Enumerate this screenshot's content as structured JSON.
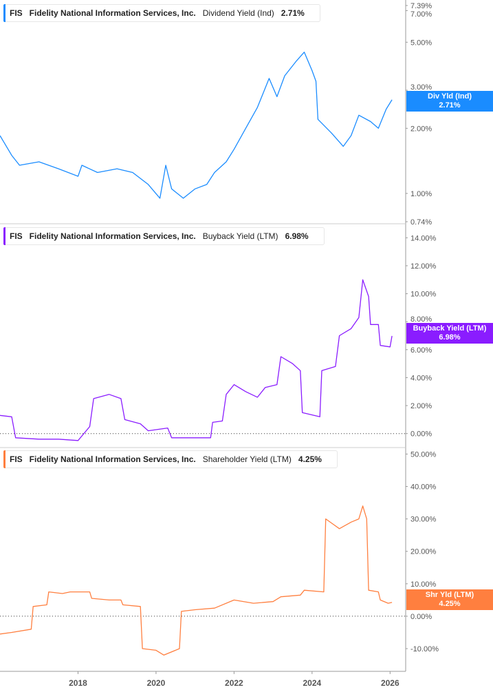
{
  "chart_data": [
    {
      "type": "line",
      "ticker": "FIS",
      "company": "Fidelity National Information Services, Inc.",
      "metric": "Dividend Yield (Ind)",
      "last_value": "2.71%",
      "tag_label": "Div Yld (Ind)",
      "color": "#1a8cff",
      "scale": "log",
      "ylim": [
        0.74,
        7.39
      ],
      "yticks": [
        "7.39%",
        "7.00%",
        "5.00%",
        "3.00%",
        "2.00%",
        "1.00%",
        "0.74%"
      ],
      "ytick_values": [
        7.39,
        7.0,
        5.0,
        3.0,
        2.0,
        1.0,
        0.74
      ],
      "x": [
        2016.0,
        2016.3,
        2016.5,
        2017.0,
        2017.5,
        2018.0,
        2018.1,
        2018.5,
        2019.0,
        2019.4,
        2019.8,
        2020.1,
        2020.25,
        2020.4,
        2020.7,
        2021.0,
        2021.3,
        2021.5,
        2021.8,
        2022.0,
        2022.3,
        2022.6,
        2022.9,
        2023.1,
        2023.3,
        2023.6,
        2023.8,
        2024.0,
        2024.1,
        2024.15,
        2024.5,
        2024.8,
        2025.0,
        2025.2,
        2025.5,
        2025.7,
        2025.9,
        2026.05
      ],
      "y": [
        1.85,
        1.5,
        1.35,
        1.4,
        1.3,
        1.2,
        1.35,
        1.25,
        1.3,
        1.25,
        1.1,
        0.95,
        1.35,
        1.05,
        0.95,
        1.05,
        1.1,
        1.25,
        1.4,
        1.6,
        2.0,
        2.5,
        3.4,
        2.8,
        3.5,
        4.1,
        4.5,
        3.7,
        3.3,
        2.2,
        1.9,
        1.65,
        1.85,
        2.3,
        2.15,
        2.0,
        2.45,
        2.71
      ]
    },
    {
      "type": "line",
      "ticker": "FIS",
      "company": "Fidelity National Information Services, Inc.",
      "metric": "Buyback Yield (LTM)",
      "last_value": "6.98%",
      "tag_label": "Buyback Yield (LTM)",
      "color": "#8a1cff",
      "scale": "linear",
      "ylim": [
        -1,
        15
      ],
      "zero_line": true,
      "yticks": [
        "14.00%",
        "12.00%",
        "10.00%",
        "8.00%",
        "6.00%",
        "4.00%",
        "2.00%",
        "0.00%"
      ],
      "ytick_values": [
        14,
        12,
        10,
        8,
        6,
        4,
        2,
        0
      ],
      "x": [
        2016.0,
        2016.3,
        2016.4,
        2017.0,
        2017.5,
        2018.0,
        2018.3,
        2018.4,
        2018.8,
        2019.1,
        2019.2,
        2019.6,
        2019.8,
        2020.3,
        2020.4,
        2021.0,
        2021.4,
        2021.45,
        2021.7,
        2021.8,
        2022.0,
        2022.3,
        2022.6,
        2022.8,
        2023.1,
        2023.2,
        2023.5,
        2023.7,
        2023.75,
        2024.2,
        2024.25,
        2024.6,
        2024.7,
        2025.0,
        2025.2,
        2025.3,
        2025.45,
        2025.5,
        2025.7,
        2025.75,
        2026.0,
        2026.05
      ],
      "y": [
        1.3,
        1.2,
        -0.3,
        -0.4,
        -0.4,
        -0.5,
        0.5,
        2.5,
        2.8,
        2.5,
        1.0,
        0.7,
        0.2,
        0.4,
        -0.3,
        -0.3,
        -0.3,
        0.8,
        0.9,
        2.8,
        3.5,
        3.0,
        2.6,
        3.3,
        3.5,
        5.5,
        5.0,
        4.5,
        1.5,
        1.2,
        4.5,
        4.8,
        7.0,
        7.5,
        8.3,
        11.0,
        9.8,
        7.8,
        7.8,
        6.3,
        6.2,
        6.98
      ]
    },
    {
      "type": "line",
      "ticker": "FIS",
      "company": "Fidelity National Information Services, Inc.",
      "metric": "Shareholder Yield (LTM)",
      "last_value": "4.25%",
      "tag_label": "Shr Yld (LTM)",
      "color": "#ff7f3f",
      "scale": "linear",
      "ylim": [
        -17,
        52
      ],
      "zero_line": true,
      "yticks": [
        "50.00%",
        "40.00%",
        "30.00%",
        "20.00%",
        "10.00%",
        "0.00%",
        "-10.00%"
      ],
      "ytick_values": [
        50,
        40,
        30,
        20,
        10,
        0,
        -10
      ],
      "x": [
        2016.0,
        2016.3,
        2016.8,
        2016.85,
        2017.2,
        2017.25,
        2017.6,
        2017.8,
        2018.3,
        2018.35,
        2018.8,
        2019.1,
        2019.15,
        2019.6,
        2019.65,
        2020.0,
        2020.2,
        2020.6,
        2020.65,
        2021.0,
        2021.5,
        2022.0,
        2022.5,
        2023.0,
        2023.2,
        2023.7,
        2023.8,
        2024.3,
        2024.35,
        2024.7,
        2025.0,
        2025.2,
        2025.3,
        2025.4,
        2025.45,
        2025.7,
        2025.75,
        2025.95,
        2026.05
      ],
      "y": [
        -5.5,
        -5,
        -4,
        3,
        3.5,
        7.5,
        7,
        7.5,
        7.5,
        5.5,
        5,
        5,
        3.5,
        3.0,
        -10,
        -10.5,
        -12,
        -10,
        1.5,
        2,
        2.5,
        5,
        4,
        4.5,
        6,
        6.5,
        8,
        7.5,
        30,
        27,
        29,
        30,
        34,
        30,
        8,
        7.5,
        5,
        4,
        4.25
      ]
    }
  ],
  "x_axis": {
    "ticks": [
      "2018",
      "2020",
      "2022",
      "2024",
      "2026"
    ],
    "tick_values": [
      2018,
      2020,
      2022,
      2024,
      2026
    ],
    "xlim": [
      2016.0,
      2026.4
    ]
  }
}
